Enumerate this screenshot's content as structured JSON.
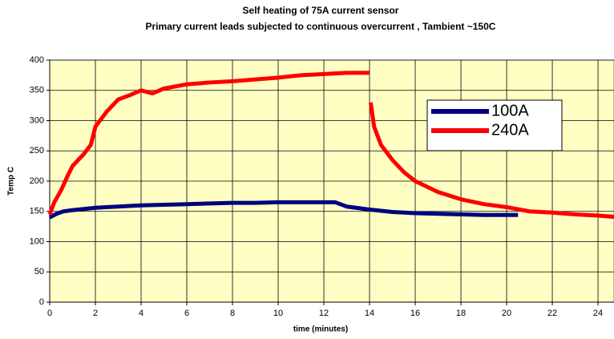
{
  "chart_data": {
    "type": "line",
    "title": "Self heating of 75A current sensor",
    "subtitle": "Primary current  leads subjected to continuous overcurrent , Tambient ~150C",
    "x_label": "time (minutes)",
    "y_label": "Temp C",
    "xlim": [
      0,
      24.7
    ],
    "xticks": [
      0,
      2,
      4,
      6,
      8,
      10,
      12,
      14,
      16,
      18,
      20,
      22,
      24
    ],
    "ylim": [
      0,
      400
    ],
    "yticks": [
      0,
      50,
      100,
      150,
      200,
      250,
      300,
      350,
      400
    ],
    "grid": true,
    "plot_background": "#ffffc4",
    "legend": "upper right",
    "series": [
      {
        "name": "100A",
        "color": "#000080",
        "x": [
          0,
          0.3,
          0.6,
          1,
          1.5,
          2,
          3,
          4,
          5,
          6,
          7,
          8,
          9,
          10,
          11,
          12,
          12.5,
          13,
          14,
          15,
          16,
          17,
          18,
          19,
          20,
          20.5
        ],
        "values": [
          140,
          146,
          150,
          152,
          154,
          156,
          158,
          160,
          161,
          162,
          163,
          164,
          164,
          165,
          165,
          165,
          165,
          158,
          153,
          149,
          147,
          146,
          145,
          144,
          144,
          144
        ]
      },
      {
        "name": "240A",
        "color": "#ff0000",
        "x": [
          0,
          0.2,
          0.5,
          0.8,
          1,
          1.5,
          1.8,
          2,
          2.5,
          3,
          3.5,
          4,
          4.5,
          5,
          6,
          7,
          8,
          9,
          10,
          11,
          12,
          13,
          14,
          14.02,
          14.05,
          14.2,
          14.5,
          15,
          15.5,
          16,
          17,
          18,
          19,
          20,
          21,
          22,
          23,
          24,
          24.7
        ],
        "values": [
          145,
          165,
          185,
          210,
          225,
          245,
          260,
          290,
          315,
          335,
          342,
          350,
          345,
          353,
          360,
          363,
          365,
          368,
          371,
          375,
          377,
          379,
          379,
          null,
          330,
          290,
          260,
          235,
          215,
          200,
          182,
          170,
          162,
          157,
          150,
          148,
          145,
          143,
          141
        ]
      }
    ]
  }
}
